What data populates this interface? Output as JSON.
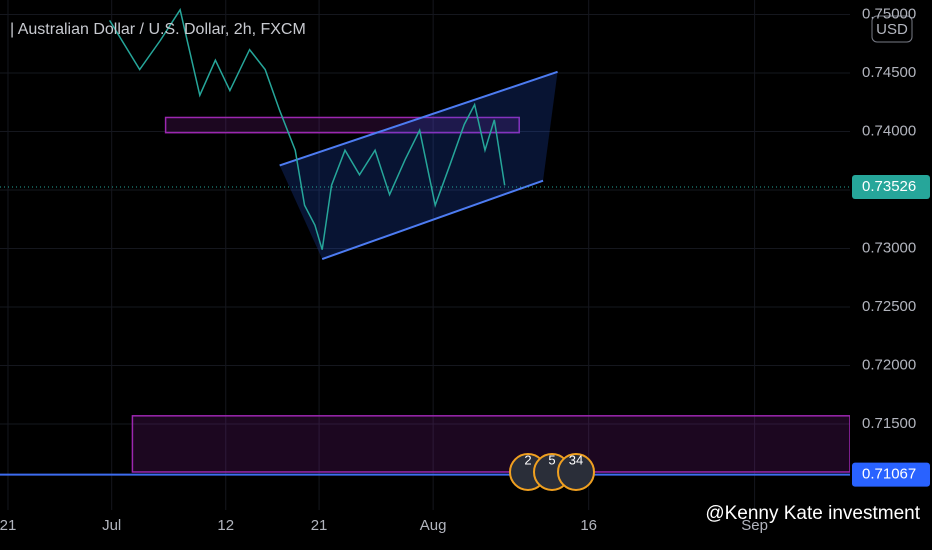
{
  "title": "| Australian Dollar / U.S. Dollar, 2h, FXCM",
  "currency": "USD",
  "watermark": "@Kenny Kate investment",
  "event_labels": [
    "2",
    "5",
    "34"
  ],
  "chart_data": {
    "type": "line",
    "color": "#26a69a",
    "x": [
      9.8,
      12.7,
      14.7,
      16.6,
      18.5,
      20,
      21.4,
      23.3,
      24.8,
      26.2,
      27.7,
      28.6,
      29.6,
      30.3,
      31.2,
      32.5,
      33.9,
      35.4,
      36.8,
      38.3,
      39.7,
      41.2,
      42.6,
      44.0,
      45.0,
      46.0,
      46.9,
      47.9
    ],
    "values": [
      0.7495,
      0.7453,
      0.7478,
      0.7504,
      0.7431,
      0.7461,
      0.7435,
      0.747,
      0.7453,
      0.7418,
      0.7384,
      0.7337,
      0.732,
      0.7299,
      0.7354,
      0.7384,
      0.7363,
      0.7384,
      0.7346,
      0.7376,
      0.7401,
      0.7337,
      0.7371,
      0.7406,
      0.7423,
      0.7384,
      0.741,
      0.7354
    ],
    "xlim": [
      -0.77,
      81.2
    ],
    "ylim": [
      0.70765,
      0.75124
    ],
    "xticks": [
      {
        "value": 0,
        "label": "21"
      },
      {
        "value": 10,
        "label": "Jul"
      },
      {
        "value": 21,
        "label": "12"
      },
      {
        "value": 30,
        "label": "21"
      },
      {
        "value": 41,
        "label": "Aug"
      },
      {
        "value": 56,
        "label": "16"
      },
      {
        "value": 72,
        "label": "Sep"
      }
    ],
    "yticks": [
      {
        "value": 0.715,
        "label": "0.71500"
      },
      {
        "value": 0.72,
        "label": "0.72000"
      },
      {
        "value": 0.725,
        "label": "0.72500"
      },
      {
        "value": 0.73,
        "label": "0.73000"
      },
      {
        "value": 0.735,
        "label": "0.73500"
      },
      {
        "value": 0.74,
        "label": "0.74000"
      },
      {
        "value": 0.745,
        "label": "0.74500"
      },
      {
        "value": 0.75,
        "label": "0.75000"
      }
    ],
    "grid": true,
    "current_price": {
      "value": 0.73526,
      "label": "0.73526"
    },
    "level": {
      "value": 0.71067,
      "label": "0.71067"
    },
    "zones": [
      {
        "x": [
          15.2,
          49.3
        ],
        "y": [
          0.7399,
          0.7412
        ]
      },
      {
        "x": [
          12.0,
          81.2
        ],
        "y": [
          0.7109,
          0.7157
        ]
      }
    ],
    "channel": {
      "upper": {
        "x": [
          26.2,
          53.0
        ],
        "y": [
          0.7371,
          0.7451
        ]
      },
      "lower": {
        "x": [
          30.3,
          51.6
        ],
        "y": [
          0.7291,
          0.7358
        ]
      }
    }
  }
}
